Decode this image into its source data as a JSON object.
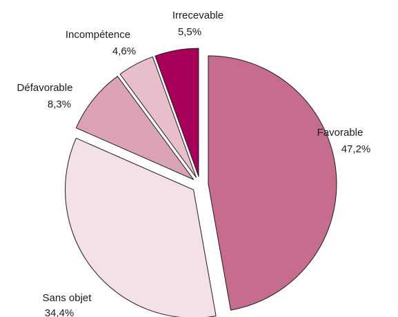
{
  "chart_data": {
    "type": "pie",
    "slices": [
      {
        "label": "Favorable",
        "value_text": "47,2%",
        "value": 47.2,
        "color": "#c66c8e"
      },
      {
        "label": "Sans objet",
        "value_text": "34,4%",
        "value": 34.4,
        "color": "#f3e0e8"
      },
      {
        "label": "Défavorable",
        "value_text": "8,3%",
        "value": 8.3,
        "color": "#dba2b7"
      },
      {
        "label": "Incompétence",
        "value_text": "4,6%",
        "value": 4.6,
        "color": "#e8bdcc"
      },
      {
        "label": "Irrecevable",
        "value_text": "5,5%",
        "value": 5.5,
        "color": "#a8005a"
      }
    ],
    "exploded": true,
    "stroke_color": "#1a1a1a"
  }
}
